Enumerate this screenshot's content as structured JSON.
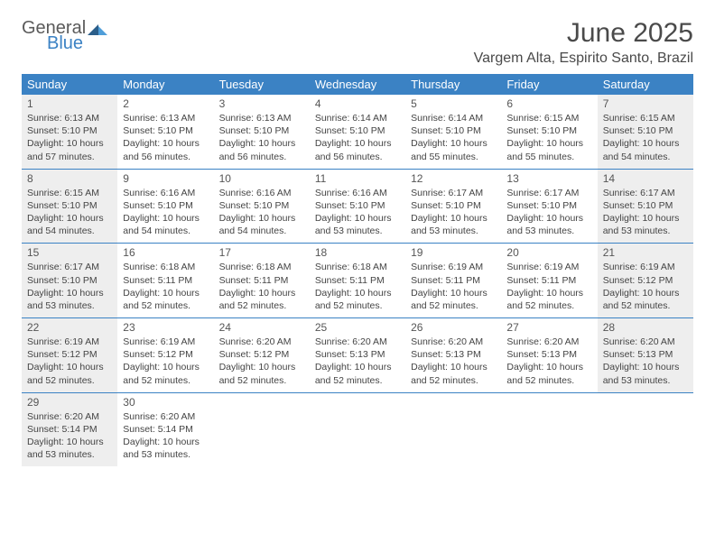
{
  "brand": {
    "text_general": "General",
    "text_blue": "Blue",
    "mark_color_dark": "#2b5e8a",
    "mark_color_light": "#4f9ed9"
  },
  "title": "June 2025",
  "location": "Vargem Alta, Espirito Santo, Brazil",
  "colors": {
    "header_bg": "#3b82c4",
    "header_text": "#ffffff",
    "row_border": "#3b82c4",
    "shaded_bg": "#eeeeee",
    "text": "#444444"
  },
  "weekdays": [
    "Sunday",
    "Monday",
    "Tuesday",
    "Wednesday",
    "Thursday",
    "Friday",
    "Saturday"
  ],
  "weeks": [
    [
      {
        "day": "1",
        "shaded": true,
        "sunrise": "Sunrise: 6:13 AM",
        "sunset": "Sunset: 5:10 PM",
        "daylight": "Daylight: 10 hours and 57 minutes."
      },
      {
        "day": "2",
        "shaded": false,
        "sunrise": "Sunrise: 6:13 AM",
        "sunset": "Sunset: 5:10 PM",
        "daylight": "Daylight: 10 hours and 56 minutes."
      },
      {
        "day": "3",
        "shaded": false,
        "sunrise": "Sunrise: 6:13 AM",
        "sunset": "Sunset: 5:10 PM",
        "daylight": "Daylight: 10 hours and 56 minutes."
      },
      {
        "day": "4",
        "shaded": false,
        "sunrise": "Sunrise: 6:14 AM",
        "sunset": "Sunset: 5:10 PM",
        "daylight": "Daylight: 10 hours and 56 minutes."
      },
      {
        "day": "5",
        "shaded": false,
        "sunrise": "Sunrise: 6:14 AM",
        "sunset": "Sunset: 5:10 PM",
        "daylight": "Daylight: 10 hours and 55 minutes."
      },
      {
        "day": "6",
        "shaded": false,
        "sunrise": "Sunrise: 6:15 AM",
        "sunset": "Sunset: 5:10 PM",
        "daylight": "Daylight: 10 hours and 55 minutes."
      },
      {
        "day": "7",
        "shaded": true,
        "sunrise": "Sunrise: 6:15 AM",
        "sunset": "Sunset: 5:10 PM",
        "daylight": "Daylight: 10 hours and 54 minutes."
      }
    ],
    [
      {
        "day": "8",
        "shaded": true,
        "sunrise": "Sunrise: 6:15 AM",
        "sunset": "Sunset: 5:10 PM",
        "daylight": "Daylight: 10 hours and 54 minutes."
      },
      {
        "day": "9",
        "shaded": false,
        "sunrise": "Sunrise: 6:16 AM",
        "sunset": "Sunset: 5:10 PM",
        "daylight": "Daylight: 10 hours and 54 minutes."
      },
      {
        "day": "10",
        "shaded": false,
        "sunrise": "Sunrise: 6:16 AM",
        "sunset": "Sunset: 5:10 PM",
        "daylight": "Daylight: 10 hours and 54 minutes."
      },
      {
        "day": "11",
        "shaded": false,
        "sunrise": "Sunrise: 6:16 AM",
        "sunset": "Sunset: 5:10 PM",
        "daylight": "Daylight: 10 hours and 53 minutes."
      },
      {
        "day": "12",
        "shaded": false,
        "sunrise": "Sunrise: 6:17 AM",
        "sunset": "Sunset: 5:10 PM",
        "daylight": "Daylight: 10 hours and 53 minutes."
      },
      {
        "day": "13",
        "shaded": false,
        "sunrise": "Sunrise: 6:17 AM",
        "sunset": "Sunset: 5:10 PM",
        "daylight": "Daylight: 10 hours and 53 minutes."
      },
      {
        "day": "14",
        "shaded": true,
        "sunrise": "Sunrise: 6:17 AM",
        "sunset": "Sunset: 5:10 PM",
        "daylight": "Daylight: 10 hours and 53 minutes."
      }
    ],
    [
      {
        "day": "15",
        "shaded": true,
        "sunrise": "Sunrise: 6:17 AM",
        "sunset": "Sunset: 5:10 PM",
        "daylight": "Daylight: 10 hours and 53 minutes."
      },
      {
        "day": "16",
        "shaded": false,
        "sunrise": "Sunrise: 6:18 AM",
        "sunset": "Sunset: 5:11 PM",
        "daylight": "Daylight: 10 hours and 52 minutes."
      },
      {
        "day": "17",
        "shaded": false,
        "sunrise": "Sunrise: 6:18 AM",
        "sunset": "Sunset: 5:11 PM",
        "daylight": "Daylight: 10 hours and 52 minutes."
      },
      {
        "day": "18",
        "shaded": false,
        "sunrise": "Sunrise: 6:18 AM",
        "sunset": "Sunset: 5:11 PM",
        "daylight": "Daylight: 10 hours and 52 minutes."
      },
      {
        "day": "19",
        "shaded": false,
        "sunrise": "Sunrise: 6:19 AM",
        "sunset": "Sunset: 5:11 PM",
        "daylight": "Daylight: 10 hours and 52 minutes."
      },
      {
        "day": "20",
        "shaded": false,
        "sunrise": "Sunrise: 6:19 AM",
        "sunset": "Sunset: 5:11 PM",
        "daylight": "Daylight: 10 hours and 52 minutes."
      },
      {
        "day": "21",
        "shaded": true,
        "sunrise": "Sunrise: 6:19 AM",
        "sunset": "Sunset: 5:12 PM",
        "daylight": "Daylight: 10 hours and 52 minutes."
      }
    ],
    [
      {
        "day": "22",
        "shaded": true,
        "sunrise": "Sunrise: 6:19 AM",
        "sunset": "Sunset: 5:12 PM",
        "daylight": "Daylight: 10 hours and 52 minutes."
      },
      {
        "day": "23",
        "shaded": false,
        "sunrise": "Sunrise: 6:19 AM",
        "sunset": "Sunset: 5:12 PM",
        "daylight": "Daylight: 10 hours and 52 minutes."
      },
      {
        "day": "24",
        "shaded": false,
        "sunrise": "Sunrise: 6:20 AM",
        "sunset": "Sunset: 5:12 PM",
        "daylight": "Daylight: 10 hours and 52 minutes."
      },
      {
        "day": "25",
        "shaded": false,
        "sunrise": "Sunrise: 6:20 AM",
        "sunset": "Sunset: 5:13 PM",
        "daylight": "Daylight: 10 hours and 52 minutes."
      },
      {
        "day": "26",
        "shaded": false,
        "sunrise": "Sunrise: 6:20 AM",
        "sunset": "Sunset: 5:13 PM",
        "daylight": "Daylight: 10 hours and 52 minutes."
      },
      {
        "day": "27",
        "shaded": false,
        "sunrise": "Sunrise: 6:20 AM",
        "sunset": "Sunset: 5:13 PM",
        "daylight": "Daylight: 10 hours and 52 minutes."
      },
      {
        "day": "28",
        "shaded": true,
        "sunrise": "Sunrise: 6:20 AM",
        "sunset": "Sunset: 5:13 PM",
        "daylight": "Daylight: 10 hours and 53 minutes."
      }
    ],
    [
      {
        "day": "29",
        "shaded": true,
        "sunrise": "Sunrise: 6:20 AM",
        "sunset": "Sunset: 5:14 PM",
        "daylight": "Daylight: 10 hours and 53 minutes."
      },
      {
        "day": "30",
        "shaded": false,
        "sunrise": "Sunrise: 6:20 AM",
        "sunset": "Sunset: 5:14 PM",
        "daylight": "Daylight: 10 hours and 53 minutes."
      },
      {
        "empty": true
      },
      {
        "empty": true
      },
      {
        "empty": true
      },
      {
        "empty": true
      },
      {
        "empty": true
      }
    ]
  ]
}
